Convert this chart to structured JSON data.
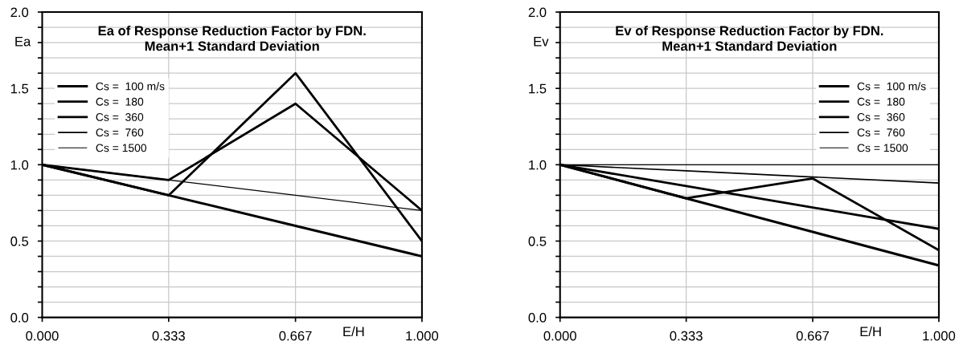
{
  "chart_data": [
    {
      "type": "line",
      "title": "Ea of Response Reduction Factor by FDN.\nMean+1 Standard Deviation",
      "xlabel": "E/H",
      "ylabel": "Ea",
      "x": [
        0,
        0.333,
        0.667,
        1
      ],
      "series": [
        {
          "name": "Cs =  100 m/s",
          "color": "#000000",
          "values": [
            1.0,
            0.8,
            0.6,
            0.4
          ]
        },
        {
          "name": "Cs =  180",
          "color": "#000000",
          "values": [
            1.0,
            0.8,
            1.6,
            0.5
          ]
        },
        {
          "name": "Cs =  360",
          "color": "#000000",
          "values": [
            1.0,
            0.9,
            1.4,
            0.7
          ]
        },
        {
          "name": "Cs =  760",
          "color": "#000000",
          "values": [
            1.0,
            0.9,
            1.4,
            0.7
          ]
        },
        {
          "name": "Cs = 1500",
          "color": "#000000",
          "values": [
            1.0,
            0.9,
            0.8,
            0.7
          ]
        }
      ],
      "xlim": [
        0,
        1
      ],
      "ylim": [
        0,
        2
      ],
      "xticks": [
        {
          "value": 0,
          "label": "0.000"
        },
        {
          "value": 0.333,
          "label": "0.333"
        },
        {
          "value": 0.667,
          "label": "0.667"
        },
        {
          "value": 1,
          "label": "1.000"
        }
      ],
      "yticks": [
        {
          "value": 0,
          "label": "0.0"
        },
        {
          "value": 0.1,
          "label": null
        },
        {
          "value": 0.2,
          "label": null
        },
        {
          "value": 0.3,
          "label": null
        },
        {
          "value": 0.4,
          "label": null
        },
        {
          "value": 0.5,
          "label": "0.5"
        },
        {
          "value": 0.6,
          "label": null
        },
        {
          "value": 0.7,
          "label": null
        },
        {
          "value": 0.8,
          "label": null
        },
        {
          "value": 0.9,
          "label": null
        },
        {
          "value": 1,
          "label": "1.0"
        },
        {
          "value": 1.1,
          "label": null
        },
        {
          "value": 1.2,
          "label": null
        },
        {
          "value": 1.3,
          "label": null
        },
        {
          "value": 1.4,
          "label": null
        },
        {
          "value": 1.5,
          "label": "1.5"
        },
        {
          "value": 1.6,
          "label": null
        },
        {
          "value": 1.7,
          "label": null
        },
        {
          "value": 1.8,
          "label": null
        },
        {
          "value": 1.9,
          "label": null
        },
        {
          "value": 2,
          "label": "2.0"
        }
      ],
      "grid": true,
      "legend": "top left",
      "marker": "none",
      "line_style": "solid"
    },
    {
      "type": "line",
      "title": "Ev of Response Reduction Factor by FDN.\nMean+1 Standard Deviation",
      "xlabel": "E/H",
      "ylabel": "Ev",
      "x": [
        0,
        0.333,
        0.667,
        1
      ],
      "series": [
        {
          "name": "Cs =  100 m/s",
          "color": "#000000",
          "values": [
            1.0,
            0.78,
            0.56,
            0.34
          ]
        },
        {
          "name": "Cs =  180",
          "color": "#000000",
          "values": [
            1.0,
            0.86,
            0.72,
            0.58
          ]
        },
        {
          "name": "Cs =  360",
          "color": "#000000",
          "values": [
            1.0,
            0.78,
            0.91,
            0.44
          ]
        },
        {
          "name": "Cs =  760",
          "color": "#000000",
          "values": [
            1.0,
            0.96,
            0.92,
            0.88
          ]
        },
        {
          "name": "Cs = 1500",
          "color": "#000000",
          "values": [
            1.0,
            1.0,
            1.0,
            1.0
          ]
        }
      ],
      "xlim": [
        0,
        1
      ],
      "ylim": [
        0,
        2
      ],
      "xticks": [
        {
          "value": 0,
          "label": "0.000"
        },
        {
          "value": 0.333,
          "label": "0.333"
        },
        {
          "value": 0.667,
          "label": "0.667"
        },
        {
          "value": 1,
          "label": "1.000"
        }
      ],
      "yticks": [
        {
          "value": 0,
          "label": "0.0"
        },
        {
          "value": 0.1,
          "label": null
        },
        {
          "value": 0.2,
          "label": null
        },
        {
          "value": 0.3,
          "label": null
        },
        {
          "value": 0.4,
          "label": null
        },
        {
          "value": 0.5,
          "label": "0.5"
        },
        {
          "value": 0.6,
          "label": null
        },
        {
          "value": 0.7,
          "label": null
        },
        {
          "value": 0.8,
          "label": null
        },
        {
          "value": 0.9,
          "label": null
        },
        {
          "value": 1,
          "label": "1.0"
        },
        {
          "value": 1.1,
          "label": null
        },
        {
          "value": 1.2,
          "label": null
        },
        {
          "value": 1.3,
          "label": null
        },
        {
          "value": 1.4,
          "label": null
        },
        {
          "value": 1.5,
          "label": "1.5"
        },
        {
          "value": 1.6,
          "label": null
        },
        {
          "value": 1.7,
          "label": null
        },
        {
          "value": 1.8,
          "label": null
        },
        {
          "value": 1.9,
          "label": null
        },
        {
          "value": 2,
          "label": "2.0"
        }
      ],
      "grid": true,
      "legend": "top right",
      "marker": "none",
      "line_style": "solid"
    }
  ]
}
